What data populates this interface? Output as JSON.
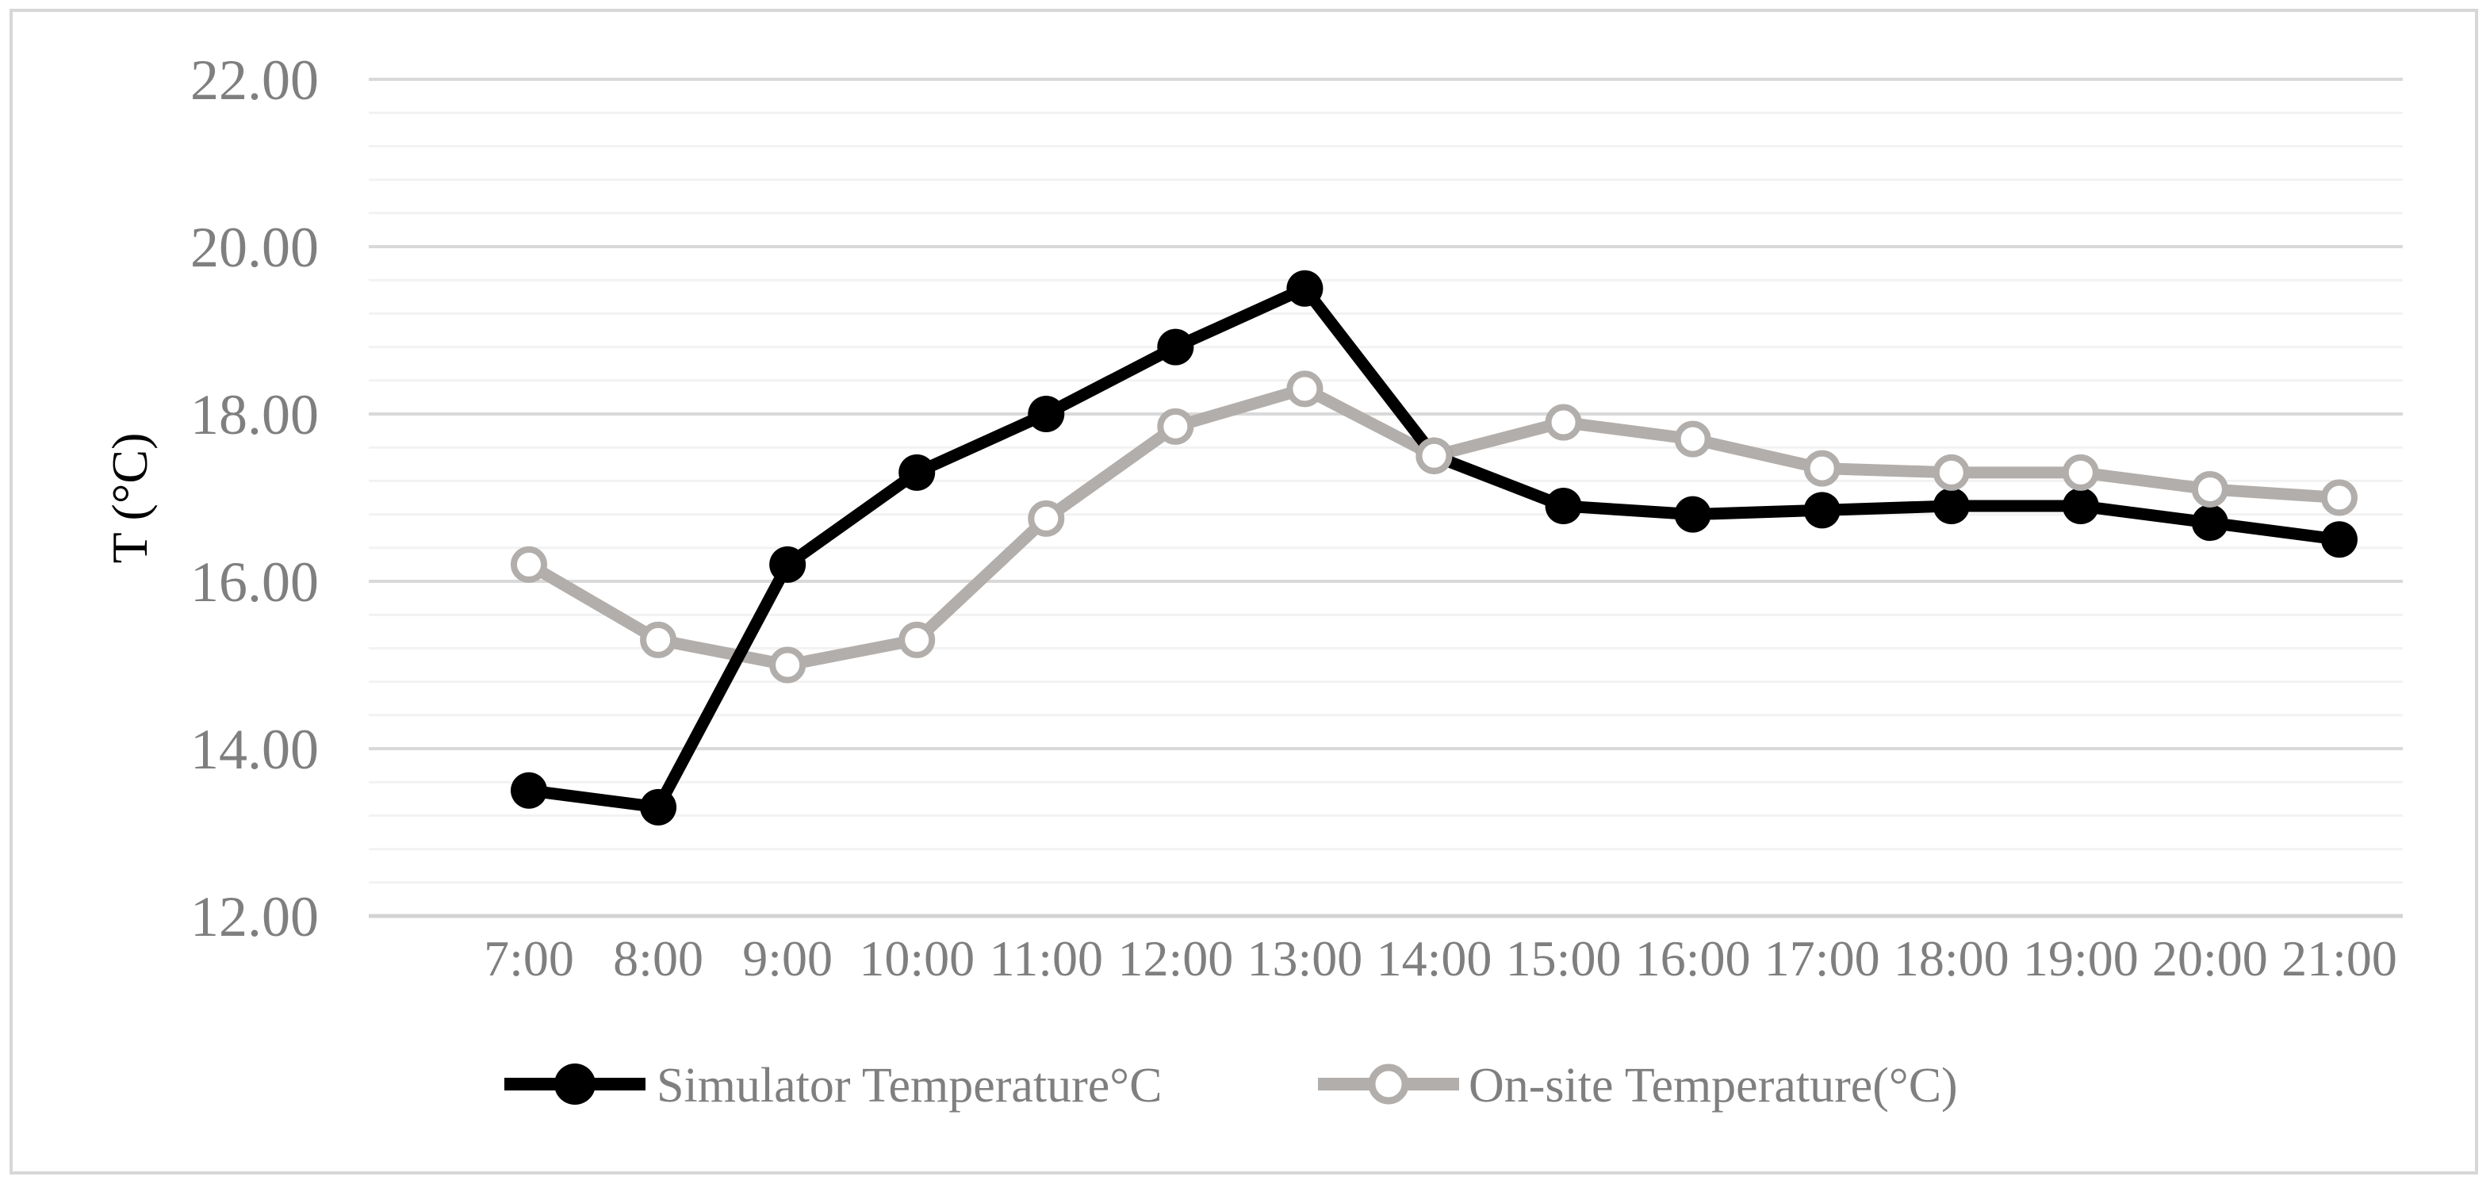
{
  "figure": {
    "background": "#ffffff",
    "border_color": "#d7d7d7"
  },
  "colors": {
    "grid_major": "#d9d9d9",
    "grid_minor": "#f2f2f2",
    "axis_line": "#d3d3d3",
    "text": "#7f7f7f",
    "series_simulator": "#000000",
    "series_onsite": "#b2aeab"
  },
  "chart_data": {
    "type": "line",
    "title": "",
    "xlabel": "",
    "ylabel": "T (°C)",
    "categories": [
      "7:00",
      "8:00",
      "9:00",
      "10:00",
      "11:00",
      "12:00",
      "13:00",
      "14:00",
      "15:00",
      "16:00",
      "17:00",
      "18:00",
      "19:00",
      "20:00",
      "21:00"
    ],
    "series": [
      {
        "name": "Simulator Temperature°C",
        "color": "#000000",
        "marker": "filled-circle",
        "values": [
          13.5,
          13.3,
          16.2,
          17.3,
          18.0,
          18.8,
          19.5,
          17.5,
          16.9,
          16.8,
          16.85,
          16.9,
          16.9,
          16.7,
          16.5
        ]
      },
      {
        "name": "On-site Temperature(°C)",
        "color": "#b2aeab",
        "marker": "open-circle",
        "values": [
          16.2,
          15.3,
          15.0,
          15.3,
          16.75,
          17.85,
          18.3,
          17.5,
          17.9,
          17.7,
          17.35,
          17.3,
          17.3,
          17.1,
          17.0
        ]
      }
    ],
    "ylim": [
      12,
      22
    ],
    "y_major_step": 2,
    "y_minor_step": 0.4,
    "y_tick_labels": [
      "22.00",
      "20.00",
      "18.00",
      "16.00",
      "14.00",
      "12.00"
    ],
    "grid": "horizontal major + minor",
    "legend_position": "bottom"
  }
}
